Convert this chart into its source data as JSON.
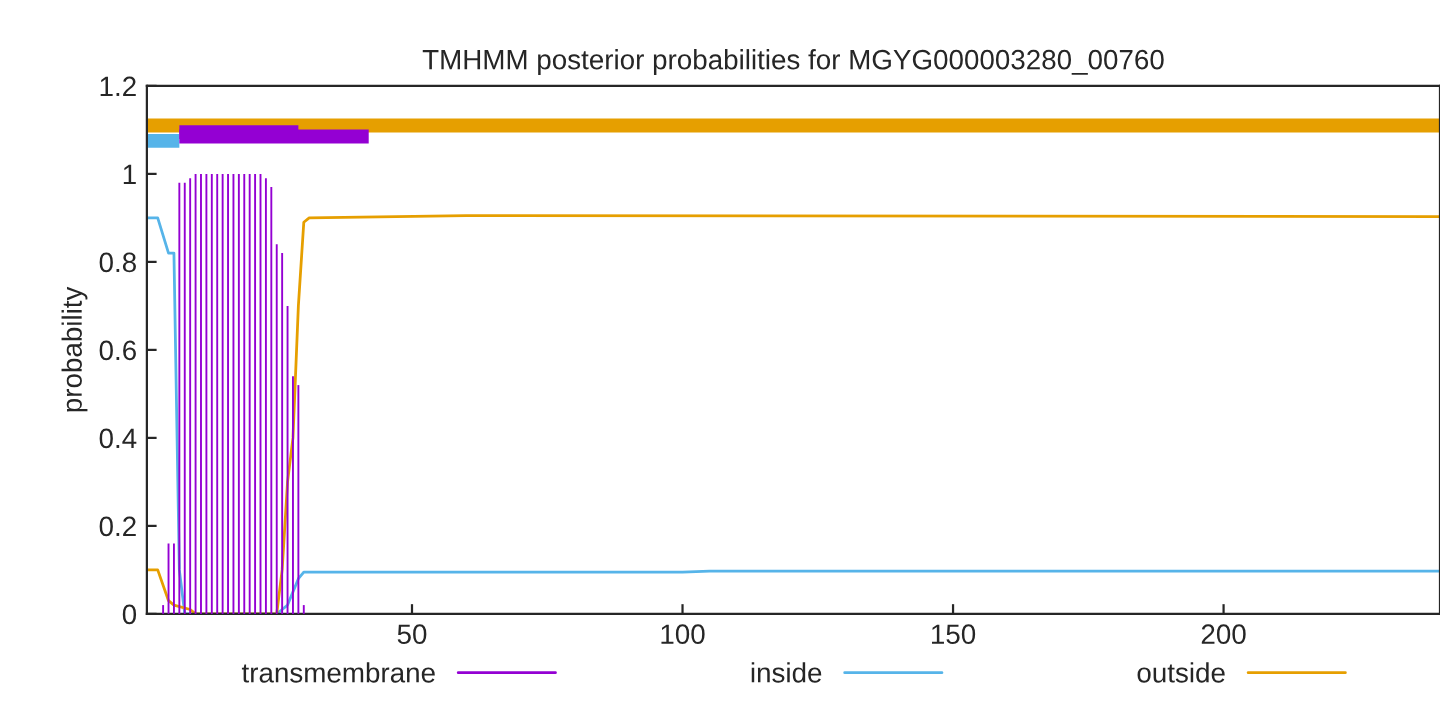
{
  "chart_data": {
    "type": "line",
    "title": "TMHMM posterior probabilities for MGYG000003280_00760",
    "ylabel": "probability",
    "xlim": [
      1,
      240
    ],
    "ylim": [
      0,
      1.2
    ],
    "xticks": [
      50,
      100,
      150,
      200
    ],
    "yticks": [
      0,
      0.2,
      0.4,
      0.6,
      0.8,
      1,
      1.2
    ],
    "grid": false,
    "legend": "bottom",
    "series": [
      {
        "name": "transmembrane",
        "type": "bar",
        "color": "#9400d3",
        "x": [
          4,
          5,
          6,
          7,
          8,
          9,
          10,
          11,
          12,
          13,
          14,
          15,
          16,
          17,
          18,
          19,
          20,
          21,
          22,
          23,
          24,
          25,
          26,
          27,
          28,
          29,
          30
        ],
        "values": [
          0.02,
          0.16,
          0.16,
          0.98,
          0.98,
          0.99,
          1,
          1,
          1,
          1,
          1,
          1,
          1,
          1,
          1,
          1,
          1,
          1,
          1,
          0.99,
          0.97,
          0.84,
          0.82,
          0.7,
          0.54,
          0.52,
          0.02
        ]
      },
      {
        "name": "inside",
        "color": "#56b4e9",
        "x": [
          1,
          3,
          5,
          6,
          7,
          8,
          25,
          26,
          27,
          28,
          29,
          30,
          31,
          100,
          105,
          240
        ],
        "values": [
          0.9,
          0.9,
          0.82,
          0.82,
          0.1,
          0,
          0,
          0.01,
          0.02,
          0.05,
          0.08,
          0.095,
          0.095,
          0.095,
          0.097,
          0.097
        ]
      },
      {
        "name": "outside",
        "color": "#e69f00",
        "x": [
          1,
          3,
          5,
          6,
          9,
          10,
          25,
          26,
          27,
          28,
          29,
          30,
          31,
          60,
          240
        ],
        "values": [
          0.1,
          0.1,
          0.03,
          0.02,
          0.01,
          0,
          0,
          0.1,
          0.3,
          0.4,
          0.7,
          0.89,
          0.9,
          0.905,
          0.903
        ]
      },
      {
        "color": "#e69f00",
        "x": [
          1,
          240
        ],
        "values": [
          1.11,
          1.11
        ]
      },
      {
        "color": "#56b4e9",
        "x": [
          1,
          7
        ],
        "values": [
          1.075,
          1.075
        ]
      },
      {
        "color": "#9400d3",
        "x": [
          7,
          42
        ],
        "values": [
          1.085,
          1.085
        ]
      },
      {
        "color": "#9400d3",
        "x": [
          7,
          29
        ],
        "values": [
          1.095,
          1.095
        ]
      }
    ]
  }
}
